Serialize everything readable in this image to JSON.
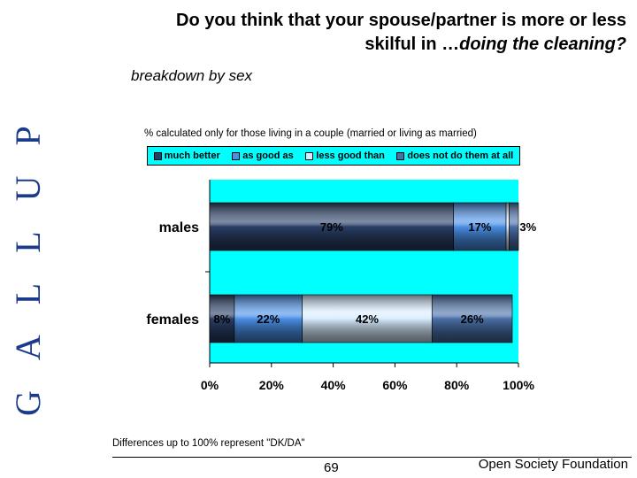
{
  "logo": {
    "text": "GALLUP"
  },
  "title": {
    "line1": "Do you think that your spouse/partner is more or less",
    "line2_prefix": "skilful in …",
    "line2_emph": "doing the cleaning?"
  },
  "subtitle": "breakdown by sex",
  "note": "% calculated only for those living in a couple (married or living as married)",
  "footnote": "Differences up to 100% represent \"DK/DA\"",
  "page_number": "69",
  "organization": "Open Society Foundation",
  "colors": {
    "plot_background": "#00ffff",
    "much_better": "#2a3f66",
    "as_good_as": "#4a90e6",
    "less_good_than": "#d8ecff",
    "does_not_do": "#4a70a8",
    "logo": "#1a3a8c"
  },
  "chart_data": {
    "type": "bar",
    "orientation": "horizontal",
    "stacked": true,
    "categories": [
      "males",
      "females"
    ],
    "series": [
      {
        "name": "much better",
        "values": [
          79,
          8
        ],
        "labels": [
          "79%",
          "8%"
        ]
      },
      {
        "name": "as good as",
        "values": [
          17,
          22
        ],
        "labels": [
          "17%",
          "22%"
        ]
      },
      {
        "name": "less good than",
        "values": [
          1,
          42
        ],
        "labels": [
          "",
          "42%"
        ]
      },
      {
        "name": "does not do them at all",
        "values": [
          3,
          26
        ],
        "labels": [
          "3%",
          "26%"
        ]
      }
    ],
    "xlim": [
      0,
      100
    ],
    "xticks": [
      "0%",
      "20%",
      "40%",
      "60%",
      "80%",
      "100%"
    ],
    "legend_position": "top"
  }
}
